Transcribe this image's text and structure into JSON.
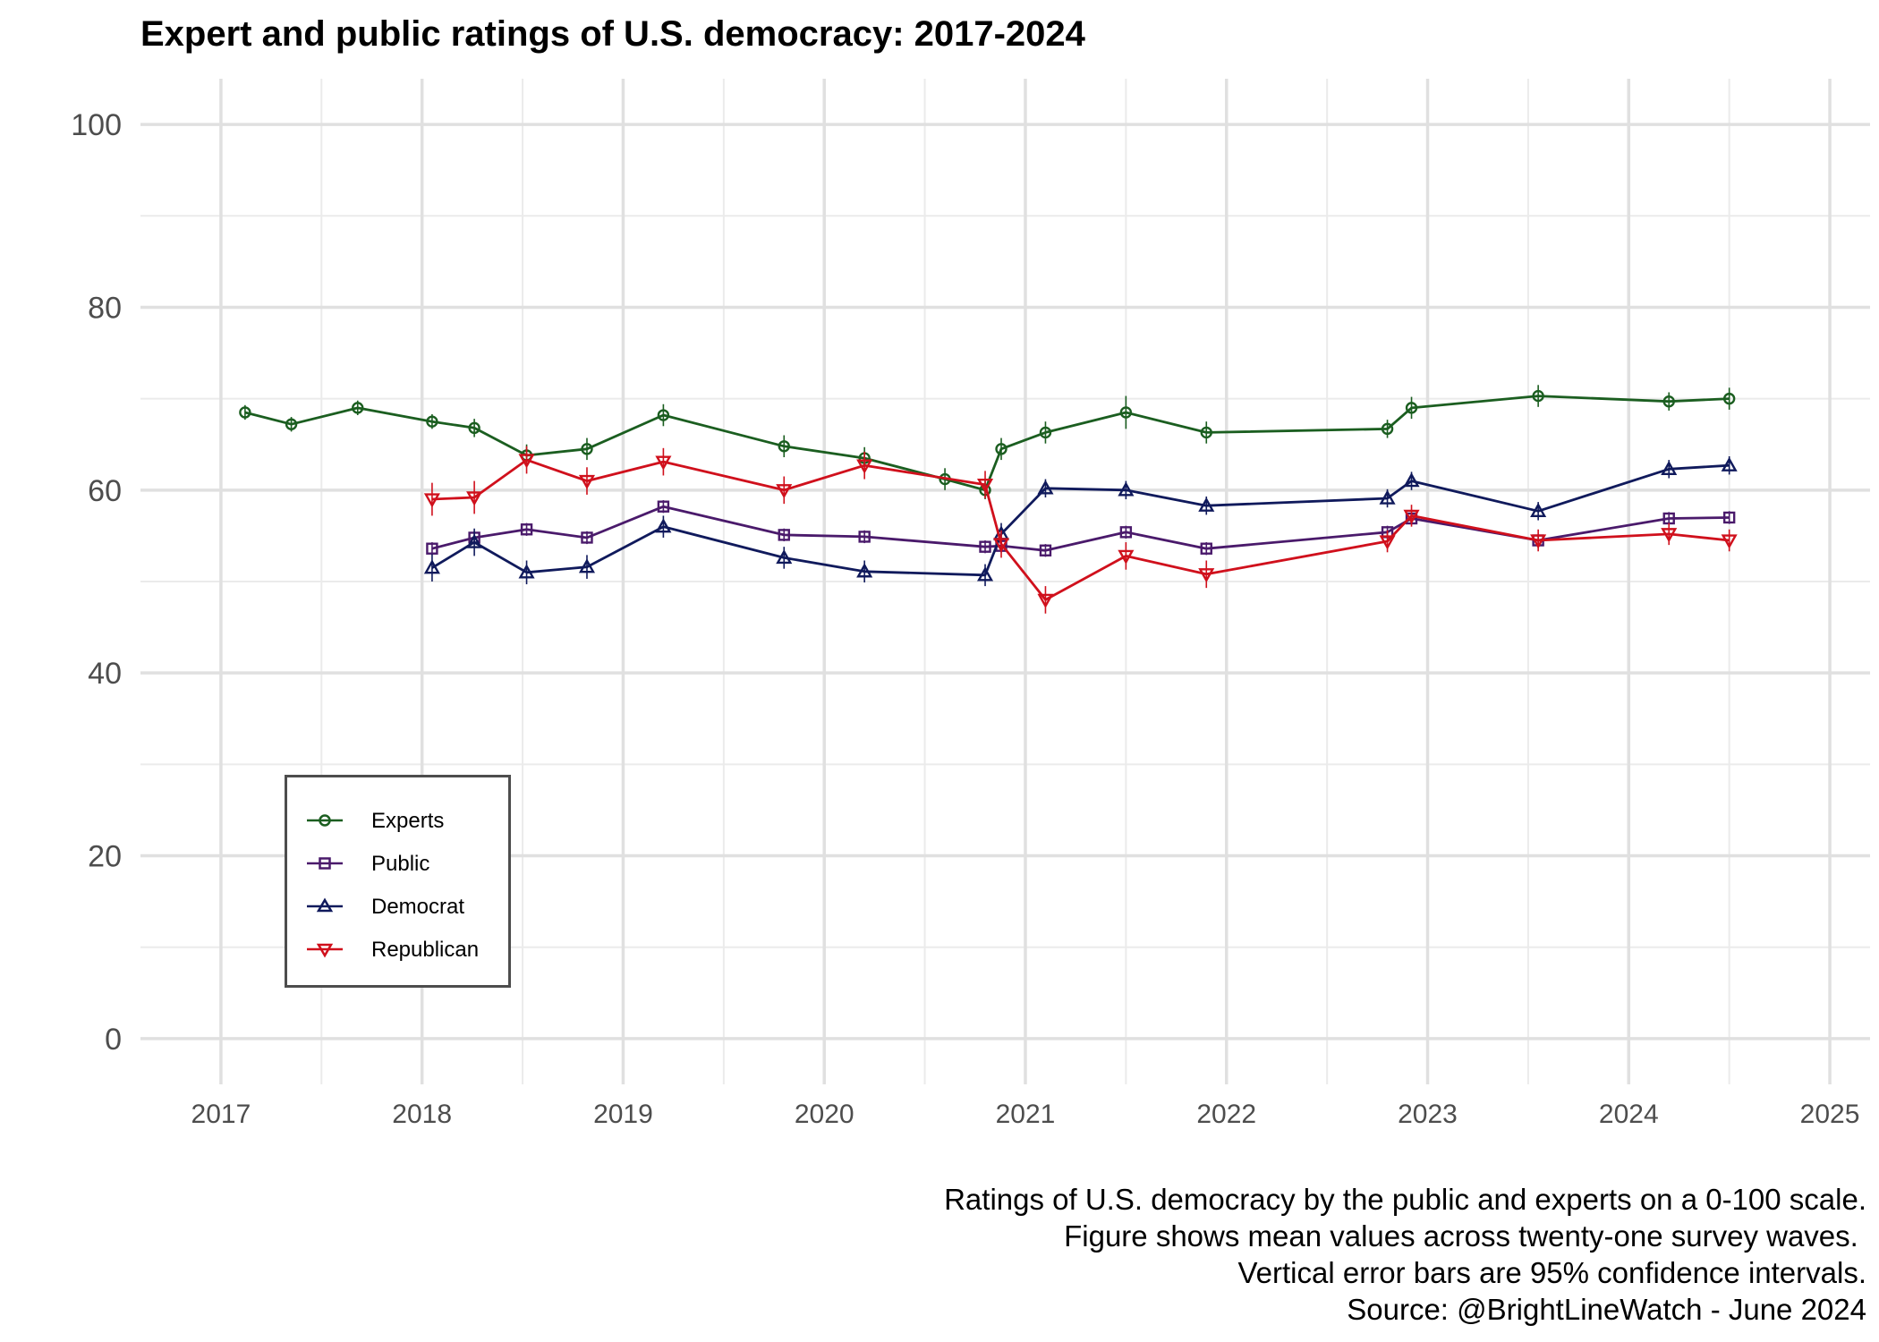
{
  "chart_data": {
    "type": "line",
    "title": "Expert and public ratings of U.S. democracy: 2017-2024",
    "xlabel": "",
    "ylabel": "",
    "xlim": [
      2016.6,
      2025.2
    ],
    "ylim": [
      -5,
      105
    ],
    "x_ticks": [
      "2017",
      "2018",
      "2019",
      "2020",
      "2021",
      "2022",
      "2023",
      "2024",
      "2025"
    ],
    "y_ticks": [
      "0",
      "20",
      "40",
      "60",
      "80",
      "100"
    ],
    "grid": true,
    "legend_position": "bottom-left inside",
    "series": [
      {
        "name": "Experts",
        "color": "#1b5e20",
        "marker": "circle",
        "x": [
          2017.12,
          2017.35,
          2017.68,
          2018.05,
          2018.26,
          2018.52,
          2018.82,
          2019.2,
          2019.8,
          2020.2,
          2020.6,
          2020.8,
          2020.88,
          2021.1,
          2021.5,
          2021.9,
          2022.8,
          2022.92,
          2023.55,
          2024.2,
          2024.5
        ],
        "y": [
          68.5,
          67.2,
          69.0,
          67.5,
          66.8,
          63.8,
          64.5,
          68.2,
          64.8,
          63.5,
          61.2,
          60.0,
          64.5,
          66.3,
          68.5,
          66.3,
          66.7,
          69.0,
          70.3,
          69.7,
          70.0
        ],
        "err": [
          0.8,
          0.8,
          0.8,
          0.8,
          1.0,
          1.2,
          1.2,
          1.2,
          1.2,
          1.2,
          1.2,
          1.0,
          1.2,
          1.2,
          1.8,
          1.2,
          1.0,
          1.2,
          1.2,
          1.0,
          1.2
        ]
      },
      {
        "name": "Public",
        "color": "#4a1a6b",
        "marker": "square",
        "x": [
          2018.05,
          2018.26,
          2018.52,
          2018.82,
          2019.2,
          2019.8,
          2020.2,
          2020.8,
          2020.88,
          2021.1,
          2021.5,
          2021.9,
          2022.8,
          2022.92,
          2023.55,
          2024.2,
          2024.5
        ],
        "y": [
          53.6,
          54.8,
          55.7,
          54.8,
          58.2,
          55.1,
          54.9,
          53.8,
          53.9,
          53.4,
          55.4,
          53.6,
          55.4,
          56.9,
          54.5,
          56.9,
          57.0
        ],
        "err": [
          0.7,
          0.7,
          0.7,
          0.7,
          0.7,
          0.7,
          0.7,
          0.7,
          0.7,
          0.7,
          0.7,
          0.7,
          0.7,
          0.7,
          0.7,
          0.7,
          0.7
        ]
      },
      {
        "name": "Democrat",
        "color": "#101a5c",
        "marker": "triangle-up",
        "x": [
          2018.05,
          2018.26,
          2018.52,
          2018.82,
          2019.2,
          2019.8,
          2020.2,
          2020.8,
          2020.88,
          2021.1,
          2021.5,
          2021.9,
          2022.8,
          2022.92,
          2023.55,
          2024.2,
          2024.5
        ],
        "y": [
          51.5,
          54.3,
          51.0,
          51.6,
          56.0,
          52.6,
          51.1,
          50.7,
          55.2,
          60.2,
          60.0,
          58.3,
          59.1,
          61.0,
          57.7,
          62.3,
          62.7
        ],
        "err": [
          1.5,
          1.5,
          1.3,
          1.3,
          1.2,
          1.2,
          1.2,
          1.2,
          1.2,
          1.0,
          1.0,
          1.0,
          1.0,
          1.0,
          1.0,
          1.0,
          1.0
        ]
      },
      {
        "name": "Republican",
        "color": "#d0101c",
        "marker": "triangle-down",
        "x": [
          2018.05,
          2018.26,
          2018.52,
          2018.82,
          2019.2,
          2019.8,
          2020.2,
          2020.8,
          2020.88,
          2021.1,
          2021.5,
          2021.9,
          2022.8,
          2022.92,
          2023.55,
          2024.2,
          2024.5
        ],
        "y": [
          59.0,
          59.2,
          63.3,
          61.0,
          63.1,
          60.0,
          62.7,
          60.6,
          54.1,
          48.0,
          52.8,
          50.8,
          54.4,
          57.2,
          54.5,
          55.2,
          54.5
        ],
        "err": [
          1.8,
          1.8,
          1.5,
          1.5,
          1.5,
          1.5,
          1.5,
          1.5,
          1.5,
          1.5,
          1.5,
          1.5,
          1.2,
          1.2,
          1.2,
          1.2,
          1.2
        ]
      }
    ],
    "caption": [
      "Ratings of U.S. democracy by the public and experts on a 0-100 scale.",
      "Figure shows mean values across twenty-one survey waves. ",
      "Vertical error bars are 95% confidence intervals.",
      "Source: @BrightLineWatch - June 2024"
    ]
  }
}
